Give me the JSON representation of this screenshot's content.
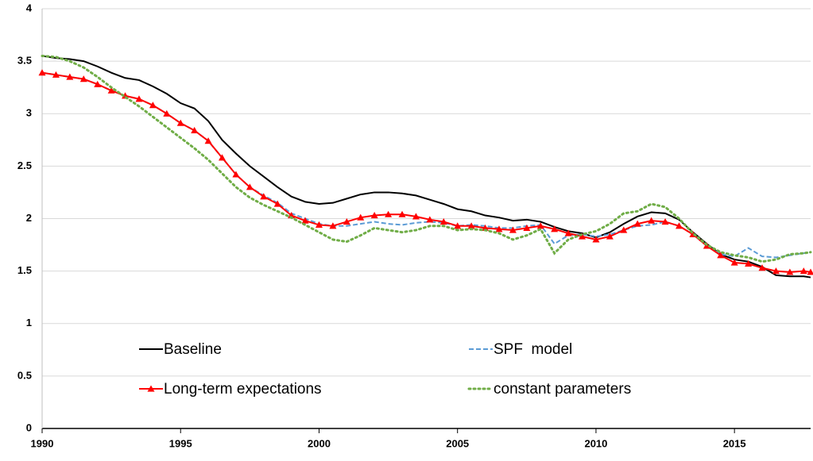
{
  "chart_data": {
    "type": "line",
    "x": [
      1990,
      1990.5,
      1991,
      1991.5,
      1992,
      1992.5,
      1993,
      1993.5,
      1994,
      1994.5,
      1995,
      1995.5,
      1996,
      1996.5,
      1997,
      1997.5,
      1998,
      1998.5,
      1999,
      1999.5,
      2000,
      2000.5,
      2001,
      2001.5,
      2002,
      2002.5,
      2003,
      2003.5,
      2004,
      2004.5,
      2005,
      2005.5,
      2006,
      2006.5,
      2007,
      2007.5,
      2008,
      2008.5,
      2009,
      2009.5,
      2010,
      2010.5,
      2011,
      2011.5,
      2012,
      2012.5,
      2013,
      2013.5,
      2014,
      2014.5,
      2015,
      2015.5,
      2016,
      2016.5,
      2017,
      2017.5,
      2017.75
    ],
    "xlim": [
      1990,
      2017.75
    ],
    "xticks": [
      1990,
      1995,
      2000,
      2005,
      2010,
      2015
    ],
    "ylim": [
      0,
      4
    ],
    "yticks": [
      0,
      0.5,
      1,
      1.5,
      2,
      2.5,
      3,
      3.5,
      4
    ],
    "grid": true,
    "series": [
      {
        "name": "Baseline",
        "color": "#000000",
        "style": "solid",
        "values": [
          3.55,
          3.53,
          3.52,
          3.5,
          3.45,
          3.39,
          3.34,
          3.32,
          3.26,
          3.19,
          3.1,
          3.05,
          2.93,
          2.75,
          2.62,
          2.5,
          2.4,
          2.3,
          2.21,
          2.16,
          2.14,
          2.15,
          2.19,
          2.23,
          2.25,
          2.25,
          2.24,
          2.22,
          2.18,
          2.14,
          2.09,
          2.07,
          2.03,
          2.01,
          1.98,
          1.99,
          1.97,
          1.92,
          1.88,
          1.86,
          1.82,
          1.87,
          1.95,
          2.02,
          2.06,
          2.05,
          1.99,
          1.87,
          1.76,
          1.66,
          1.61,
          1.59,
          1.54,
          1.46,
          1.45,
          1.45,
          1.44
        ]
      },
      {
        "name": "SPF  model",
        "color": "#5b9bd5",
        "style": "dashed",
        "values": [
          3.39,
          3.37,
          3.35,
          3.33,
          3.28,
          3.22,
          3.17,
          3.14,
          3.08,
          3.0,
          2.91,
          2.84,
          2.74,
          2.58,
          2.42,
          2.3,
          2.22,
          2.15,
          2.05,
          2.0,
          1.95,
          1.93,
          1.93,
          1.95,
          1.97,
          1.95,
          1.94,
          1.96,
          1.97,
          1.96,
          1.93,
          1.94,
          1.93,
          1.91,
          1.91,
          1.93,
          1.94,
          1.76,
          1.84,
          1.85,
          1.83,
          1.85,
          1.89,
          1.93,
          1.94,
          1.97,
          1.93,
          1.85,
          1.74,
          1.66,
          1.64,
          1.72,
          1.64,
          1.63,
          1.65,
          1.67,
          1.68
        ]
      },
      {
        "name": "Long-term expectations",
        "color": "#ff0000",
        "style": "solid",
        "marker": "triangle",
        "values": [
          3.39,
          3.37,
          3.35,
          3.33,
          3.28,
          3.22,
          3.17,
          3.14,
          3.08,
          3.0,
          2.91,
          2.84,
          2.74,
          2.58,
          2.42,
          2.3,
          2.21,
          2.14,
          2.03,
          1.98,
          1.94,
          1.93,
          1.97,
          2.01,
          2.03,
          2.04,
          2.04,
          2.02,
          1.99,
          1.97,
          1.93,
          1.93,
          1.91,
          1.9,
          1.89,
          1.91,
          1.93,
          1.9,
          1.86,
          1.83,
          1.8,
          1.83,
          1.89,
          1.95,
          1.98,
          1.97,
          1.93,
          1.85,
          1.74,
          1.65,
          1.58,
          1.57,
          1.53,
          1.5,
          1.49,
          1.5,
          1.49
        ]
      },
      {
        "name": "constant parameters",
        "color": "#70ad47",
        "style": "dotted",
        "values": [
          3.55,
          3.54,
          3.5,
          3.44,
          3.35,
          3.25,
          3.16,
          3.07,
          2.97,
          2.87,
          2.77,
          2.67,
          2.56,
          2.43,
          2.3,
          2.2,
          2.13,
          2.07,
          2.01,
          1.94,
          1.87,
          1.8,
          1.78,
          1.84,
          1.91,
          1.89,
          1.87,
          1.89,
          1.93,
          1.93,
          1.89,
          1.9,
          1.89,
          1.86,
          1.8,
          1.84,
          1.9,
          1.67,
          1.8,
          1.85,
          1.88,
          1.95,
          2.05,
          2.07,
          2.14,
          2.11,
          2.0,
          1.86,
          1.75,
          1.68,
          1.65,
          1.63,
          1.59,
          1.61,
          1.66,
          1.67,
          1.68
        ]
      }
    ]
  }
}
